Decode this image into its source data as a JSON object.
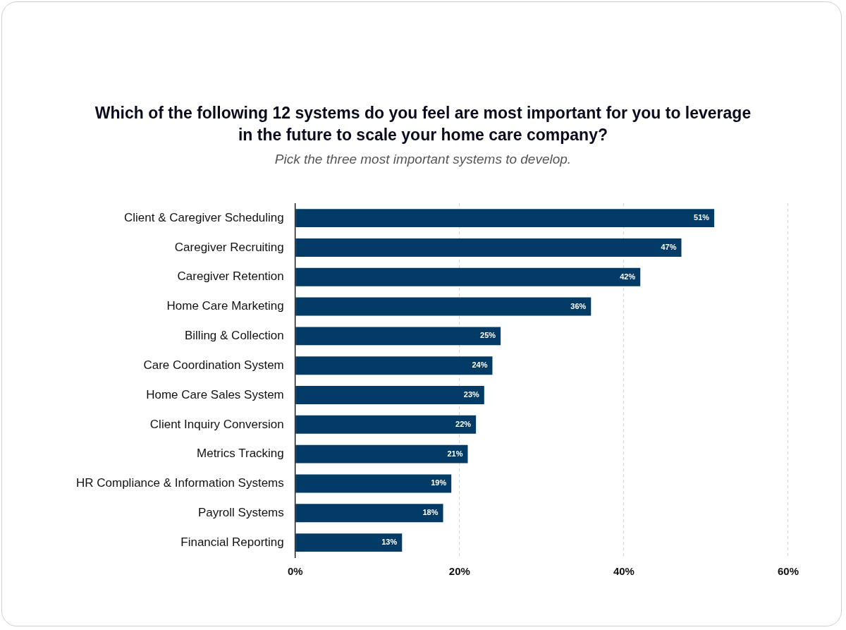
{
  "chart_data": {
    "type": "bar",
    "orientation": "horizontal",
    "title": "Which of the following 12 systems do you feel are most important for you to leverage in the future to scale your home care company?",
    "subtitle": "Pick the three most important systems to develop.",
    "categories": [
      "Client & Caregiver Scheduling",
      "Caregiver Recruiting",
      "Caregiver Retention",
      "Home Care Marketing",
      "Billing & Collection",
      "Care Coordination System",
      "Home Care Sales System",
      "Client Inquiry Conversion",
      "Metrics Tracking",
      "HR Compliance & Information Systems",
      "Payroll Systems",
      "Financial Reporting"
    ],
    "values": [
      51,
      47,
      42,
      36,
      25,
      24,
      23,
      22,
      21,
      19,
      18,
      13
    ],
    "color": "#023b65",
    "xlim": [
      0,
      60
    ],
    "xticks": [
      {
        "value": 0,
        "label": "0%"
      },
      {
        "value": 20,
        "label": "20%"
      },
      {
        "value": 40,
        "label": "40%"
      },
      {
        "value": 60,
        "label": "60%"
      }
    ],
    "value_labels": [
      "51%",
      "47%",
      "42%",
      "36%",
      "25%",
      "24%",
      "23%",
      "22%",
      "21%",
      "19%",
      "18%",
      "13%"
    ],
    "grid": "x",
    "legend": false
  }
}
